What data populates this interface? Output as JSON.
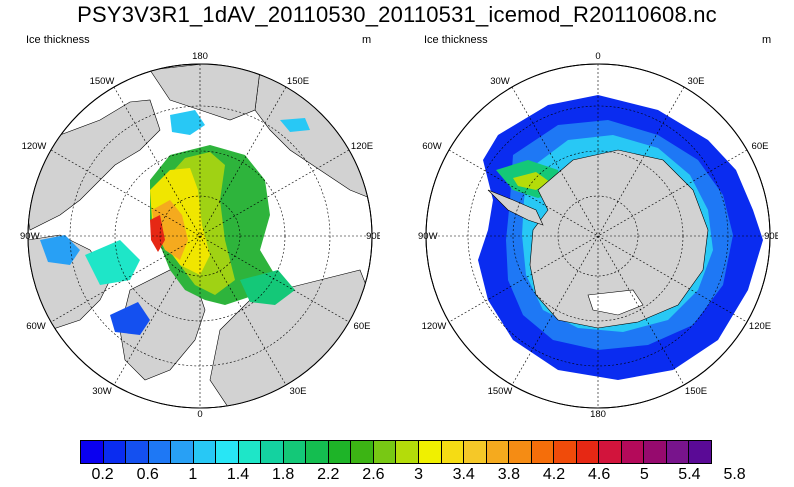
{
  "title": "PSY3V3R1_1dAV_20110530_20110531_icemod_R20110608.nc",
  "panels": [
    {
      "variable": "Ice thickness",
      "units": "m",
      "hemisphere": "north",
      "lon_labels": {
        "top": "180",
        "top_right": "150E",
        "right_upper": "120E",
        "right": "90E",
        "right_lower": "60E",
        "bottom_right": "30E",
        "bottom": "0",
        "bottom_left": "30W",
        "left_lower": "60W",
        "left": "90W",
        "left_upper": "120W",
        "top_left": "150W"
      }
    },
    {
      "variable": "Ice thickness",
      "units": "m",
      "hemisphere": "south",
      "lon_labels": {
        "top": "0",
        "top_right": "30E",
        "right_upper": "60E",
        "right": "90E",
        "right_lower": "120E",
        "bottom_right": "150E",
        "bottom": "180",
        "bottom_left": "150W",
        "left_lower": "120W",
        "left": "90W",
        "left_upper": "60W",
        "top_left": "30W"
      }
    }
  ],
  "colorbar": {
    "colors": [
      "#0a00f0",
      "#0a2cf0",
      "#1450f0",
      "#1e78f5",
      "#28a0f5",
      "#28c8f5",
      "#28e6f5",
      "#1ee6c8",
      "#14d2a0",
      "#14c878",
      "#14be50",
      "#1eb428",
      "#3cb414",
      "#78c814",
      "#b4dc0a",
      "#f0f000",
      "#f5dc14",
      "#f5c828",
      "#f5aa1e",
      "#f58c14",
      "#f56e0a",
      "#f04b0a",
      "#e62814",
      "#d2143c",
      "#b40a5a",
      "#960a6e",
      "#78148c",
      "#5a0a96"
    ],
    "tick_labels": [
      "0.2",
      "0.6",
      "1",
      "1.4",
      "1.8",
      "2.2",
      "2.6",
      "3",
      "3.4",
      "3.8",
      "4.2",
      "4.6",
      "5",
      "5.4",
      "5.8"
    ]
  }
}
